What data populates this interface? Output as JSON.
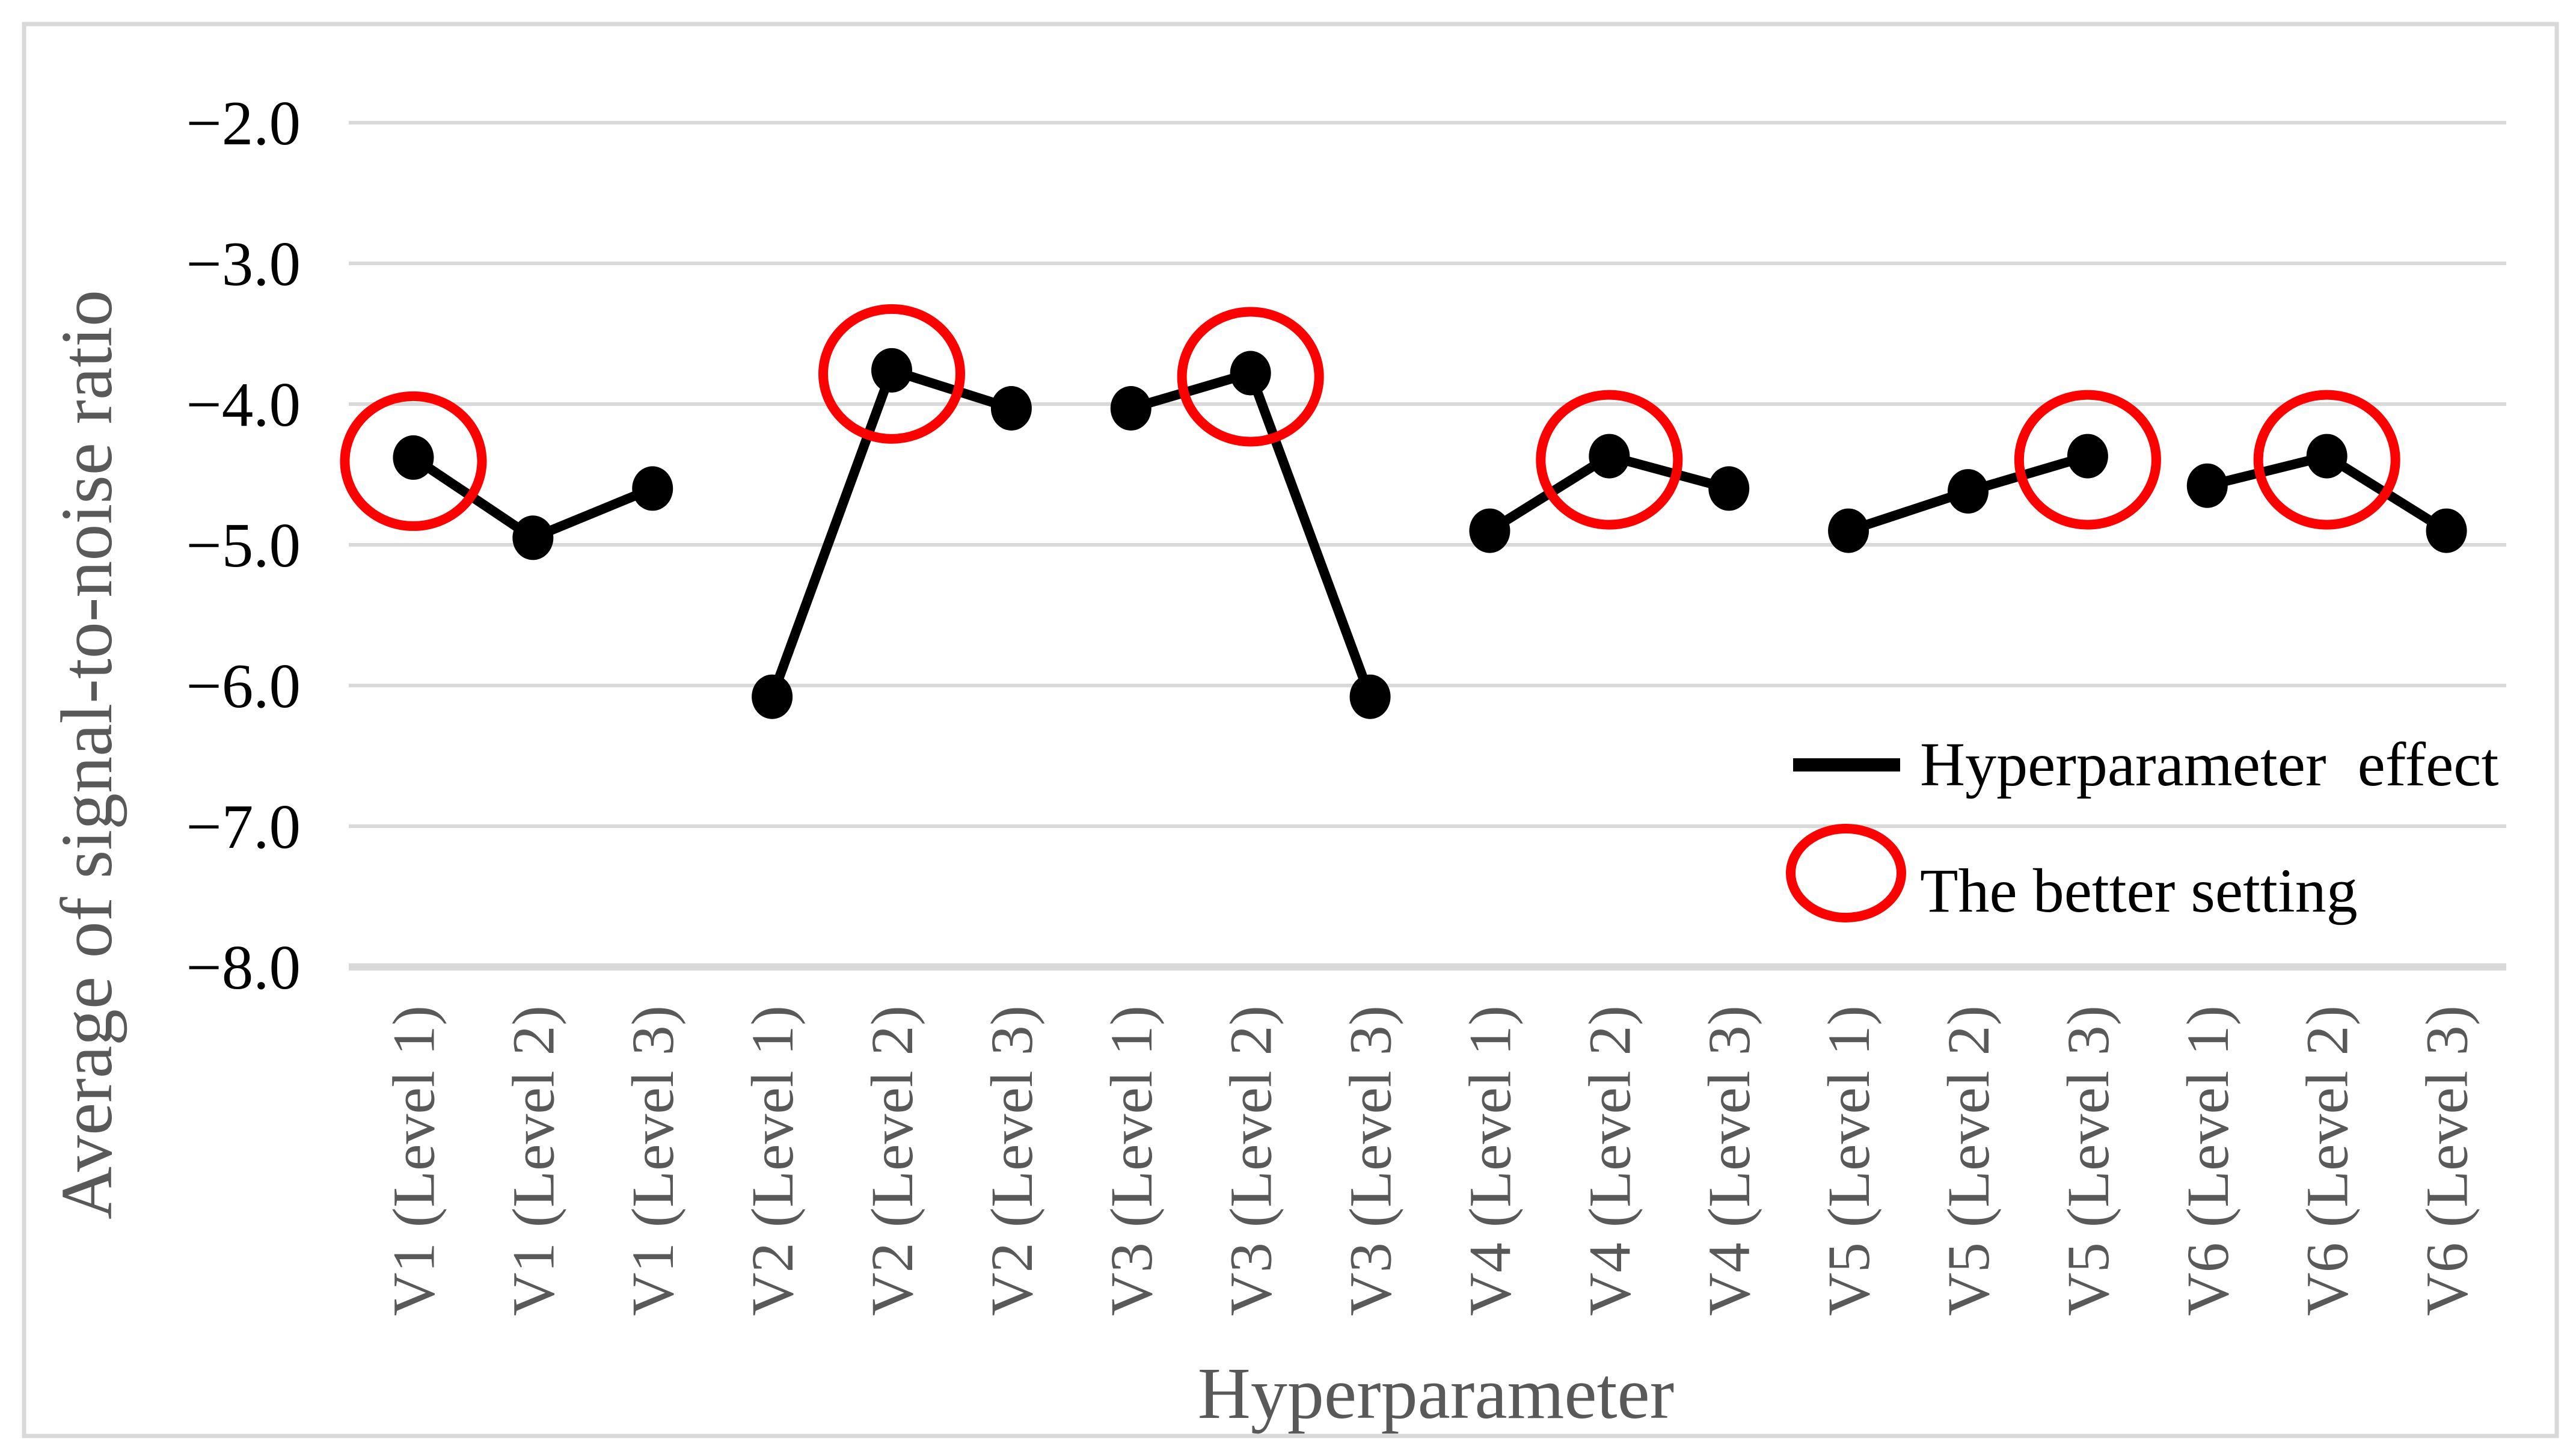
{
  "figure": {
    "background_color": "#ffffff",
    "border_color": "#d9d9d9"
  },
  "chart_data": {
    "type": "line",
    "title": "",
    "xlabel": "Hyperparameter",
    "ylabel": "Average of signal-to-noise ratio",
    "ylim": [
      -8.0,
      -2.0
    ],
    "yticks": [
      -2.0,
      -3.0,
      -4.0,
      -5.0,
      -6.0,
      -7.0,
      -8.0
    ],
    "ytick_labels": [
      "−2.0",
      "−3.0",
      "−4.0",
      "−5.0",
      "−6.0",
      "−7.0",
      "−8.0"
    ],
    "grid": true,
    "gridline_color": "#d9d9d9",
    "categories": [
      "V1 (Level 1)",
      "V1 (Level 2)",
      "V1 (Level 3)",
      "V2 (Level 1)",
      "V2 (Level 2)",
      "V2 (Level 3)",
      "V3 (Level 1)",
      "V3 (Level 2)",
      "V3 (Level 3)",
      "V4 (Level 1)",
      "V4 (Level 2)",
      "V4 (Level 3)",
      "V5 (Level 1)",
      "V5 (Level 2)",
      "V5 (Level 3)",
      "V6 (Level 1)",
      "V6 (Level 2)",
      "V6 (Level 3)"
    ],
    "series": [
      {
        "name": "V1",
        "values": [
          -4.38,
          -4.95,
          -4.6
        ],
        "better_index": 0,
        "better_setting": "V1 (Level 1)"
      },
      {
        "name": "V2",
        "values": [
          -6.08,
          -3.76,
          -4.03
        ],
        "better_index": 1,
        "better_setting": "V2 (Level 2)"
      },
      {
        "name": "V3",
        "values": [
          -4.03,
          -3.78,
          -6.08
        ],
        "better_index": 1,
        "better_setting": "V3 (Level 2)"
      },
      {
        "name": "V4",
        "values": [
          -4.9,
          -4.37,
          -4.6
        ],
        "better_index": 1,
        "better_setting": "V4 (Level 2)"
      },
      {
        "name": "V5",
        "values": [
          -4.9,
          -4.62,
          -4.37
        ],
        "better_index": 2,
        "better_setting": "V5 (Level 3)"
      },
      {
        "name": "V6",
        "values": [
          -4.58,
          -4.37,
          -4.9
        ],
        "better_index": 1,
        "better_setting": "V6 (Level 2)"
      }
    ],
    "legend": {
      "position": "inside-right",
      "items": [
        {
          "label": "Hyperparameter  effect",
          "marker": "black-line"
        },
        {
          "label": "The better setting",
          "marker": "red-circle"
        }
      ]
    },
    "colors": {
      "line": "#000000",
      "marker": "#000000",
      "better_circle": "#ff0000",
      "gridline": "#d9d9d9",
      "axis_title": "#595959",
      "category_label": "#595959",
      "tick_label": "#000000"
    }
  }
}
